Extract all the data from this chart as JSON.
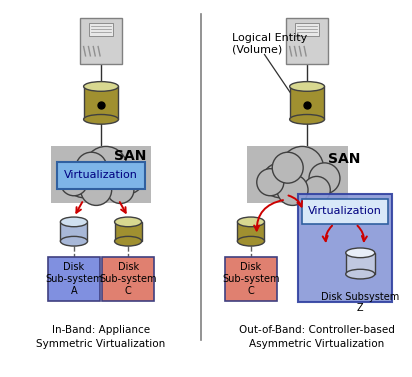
{
  "bg_color": "#ffffff",
  "title_logical": "Logical Entity\n(Volume)",
  "left_label": "In-Band: Appliance\nSymmetric Virtualization",
  "right_label": "Out-of-Band: Controller-based\nAsymmetric Virtualization",
  "san_left_text": "SAN",
  "san_right_text": "SAN",
  "virt_text": "Virtualization",
  "disk_A_text": "Disk\nSub-system\nA",
  "disk_C_left_text": "Disk\nSub-system\nC",
  "disk_C_right_text": "Disk\nSub-system\nC",
  "disk_Z_text": "Disk Subsystem\nZ",
  "cloud_color": "#b8b8b8",
  "cloud_edge": "#404040",
  "virt_box_color": "#7eb5e8",
  "virt_box_edge": "#3060a0",
  "disk_A_color": "#8090e0",
  "disk_C_color": "#e08070",
  "cyl_body_gold": "#a09030",
  "cyl_top_gold": "#d8d890",
  "cyl_body_light": "#a8b8d8",
  "cyl_top_light": "#d0e0f0",
  "cyl_body_white": "#c0c8e0",
  "cyl_top_white": "#e8eef8",
  "blue_box_color": "#8898d8",
  "blue_box_edge": "#3040a0",
  "virt_box2_color": "#d8e8f8",
  "virt_box2_edge": "#3060a0",
  "arrow_color": "#cc0000",
  "line_color": "#303030",
  "server_color": "#d0d0d0",
  "server_edge": "#808080"
}
